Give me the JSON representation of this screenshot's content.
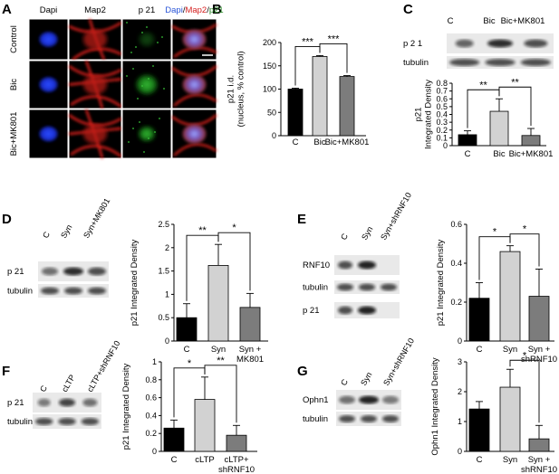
{
  "panel_letters": [
    "A",
    "B",
    "C",
    "D",
    "E",
    "F",
    "G"
  ],
  "panel_a": {
    "col_headers": [
      "Dapi",
      "Map2",
      "p 21"
    ],
    "merge_header": [
      "Dapi",
      "/",
      "Map2",
      "/",
      "p21"
    ],
    "merge_colors": [
      "#2a55d8",
      "#000000",
      "#d42020",
      "#000000",
      "#2a8a2a"
    ],
    "row_labels": [
      "Control",
      "Bic",
      "Bic+MK801"
    ]
  },
  "blots": {
    "c": {
      "lanes": [
        "C",
        "Bic",
        "Bic+MK801"
      ],
      "bands": [
        "p 2 1",
        "tubulin"
      ]
    },
    "d": {
      "lanes": [
        "C",
        "Syn",
        "Syn+MK801"
      ],
      "bands": [
        "p 21",
        "tubulin"
      ]
    },
    "e": {
      "lanes": [
        "C",
        "Syn",
        "Syn+shRNF10"
      ],
      "bands": [
        "RNF10",
        "tubulin",
        "p 21"
      ]
    },
    "f": {
      "lanes": [
        "C",
        "cLTP",
        "cLTP+shRNF10"
      ],
      "bands": [
        "p 21",
        "tubulin"
      ]
    },
    "g": {
      "lanes": [
        "C",
        "Syn",
        "Syn+shRNF10"
      ],
      "bands": [
        "Ophn1",
        "tubulin"
      ]
    }
  },
  "chart_data": [
    {
      "id": "B",
      "type": "bar",
      "categories": [
        "C",
        "Bic",
        "Bic+MK801"
      ],
      "cat_lines": [
        [
          "C"
        ],
        [
          "Bic"
        ],
        [
          "Bic+MK801"
        ]
      ],
      "values": [
        100,
        170,
        127
      ],
      "errors": [
        2,
        2,
        2
      ],
      "ylim": [
        0,
        200
      ],
      "yticks": [
        0,
        50,
        100,
        150,
        200
      ],
      "ylabel": [
        "p21 i.d.",
        "(nucleus, % control)"
      ],
      "xlabel": "",
      "colors": [
        "#000000",
        "#d2d2d2",
        "#7c7c7c"
      ],
      "sig": [
        {
          "from": 0,
          "to": 1,
          "label": "***"
        },
        {
          "from": 1,
          "to": 2,
          "label": "***"
        }
      ]
    },
    {
      "id": "C",
      "type": "bar",
      "categories": [
        "C",
        "Bic",
        "Bic+MK801"
      ],
      "cat_lines": [
        [
          "C"
        ],
        [
          "Bic"
        ],
        [
          "Bic+MK801"
        ]
      ],
      "values": [
        0.14,
        0.44,
        0.13
      ],
      "errors": [
        0.05,
        0.16,
        0.09
      ],
      "ylim": [
        0,
        0.8
      ],
      "yticks": [
        "0",
        "0.1",
        "0.2",
        "0.3",
        "0.4",
        "0.5",
        "0.6",
        "0.7",
        "0.8"
      ],
      "ylabel": [
        "p21",
        "Integrated Density"
      ],
      "xlabel": "",
      "colors": [
        "#000000",
        "#d2d2d2",
        "#7c7c7c"
      ],
      "sig": [
        {
          "from": 0,
          "to": 1,
          "label": "**"
        },
        {
          "from": 1,
          "to": 2,
          "label": "**"
        }
      ]
    },
    {
      "id": "D",
      "type": "bar",
      "categories": [
        "C",
        "Syn",
        "Syn + MK801"
      ],
      "cat_lines": [
        [
          "C"
        ],
        [
          "Syn"
        ],
        [
          "Syn +",
          "MK801"
        ]
      ],
      "values": [
        0.5,
        1.62,
        0.72
      ],
      "errors": [
        0.3,
        0.45,
        0.3
      ],
      "ylim": [
        0,
        2.5
      ],
      "yticks": [
        "0",
        "0.5",
        "1",
        "1.5",
        "2",
        "2.5"
      ],
      "ylabel": [
        "p21 Integrated Density"
      ],
      "xlabel": "",
      "colors": [
        "#000000",
        "#d2d2d2",
        "#7c7c7c"
      ],
      "sig": [
        {
          "from": 0,
          "to": 1,
          "label": "**"
        },
        {
          "from": 1,
          "to": 2,
          "label": "*"
        }
      ]
    },
    {
      "id": "E",
      "type": "bar",
      "categories": [
        "C",
        "Syn",
        "Syn + shRNF10"
      ],
      "cat_lines": [
        [
          "C"
        ],
        [
          "Syn"
        ],
        [
          "Syn +",
          "shRNF10"
        ]
      ],
      "values": [
        0.22,
        0.46,
        0.23
      ],
      "errors": [
        0.08,
        0.03,
        0.14
      ],
      "ylim": [
        0,
        0.6
      ],
      "yticks": [
        "0",
        "0.2",
        "0.4",
        "0.6"
      ],
      "ylabel": [
        "p21 Integrated Density"
      ],
      "xlabel": "",
      "colors": [
        "#000000",
        "#d2d2d2",
        "#7c7c7c"
      ],
      "sig": [
        {
          "from": 0,
          "to": 1,
          "label": "*"
        },
        {
          "from": 1,
          "to": 2,
          "label": "*"
        }
      ]
    },
    {
      "id": "F",
      "type": "bar",
      "categories": [
        "C",
        "cLTP",
        "cLTP+ shRNF10"
      ],
      "cat_lines": [
        [
          "C"
        ],
        [
          "cLTP"
        ],
        [
          "cLTP+",
          "shRNF10"
        ]
      ],
      "values": [
        0.26,
        0.58,
        0.18
      ],
      "errors": [
        0.09,
        0.25,
        0.11
      ],
      "ylim": [
        0,
        1
      ],
      "yticks": [
        "0",
        "0.2",
        "0.4",
        "0.6",
        "0.8",
        "1"
      ],
      "ylabel": [
        "p21 Integrated Density"
      ],
      "xlabel": "",
      "colors": [
        "#000000",
        "#d2d2d2",
        "#7c7c7c"
      ],
      "sig": [
        {
          "from": 0,
          "to": 1,
          "label": "*"
        },
        {
          "from": 1,
          "to": 2,
          "label": "**"
        }
      ]
    },
    {
      "id": "G",
      "type": "bar",
      "categories": [
        "C",
        "Syn",
        "Syn + shRNF10"
      ],
      "cat_lines": [
        [
          "C"
        ],
        [
          "Syn"
        ],
        [
          "Syn +",
          "shRNF10"
        ]
      ],
      "values": [
        1.42,
        2.15,
        0.42
      ],
      "errors": [
        0.25,
        0.6,
        0.45
      ],
      "ylim": [
        0,
        3
      ],
      "yticks": [
        "0",
        "1",
        "2",
        "3"
      ],
      "ylabel": [
        "Ophn1 Integrated Density"
      ],
      "xlabel": "",
      "colors": [
        "#000000",
        "#d2d2d2",
        "#7c7c7c"
      ],
      "sig": [
        {
          "from": 1,
          "to": 2,
          "label": "*"
        }
      ]
    }
  ]
}
